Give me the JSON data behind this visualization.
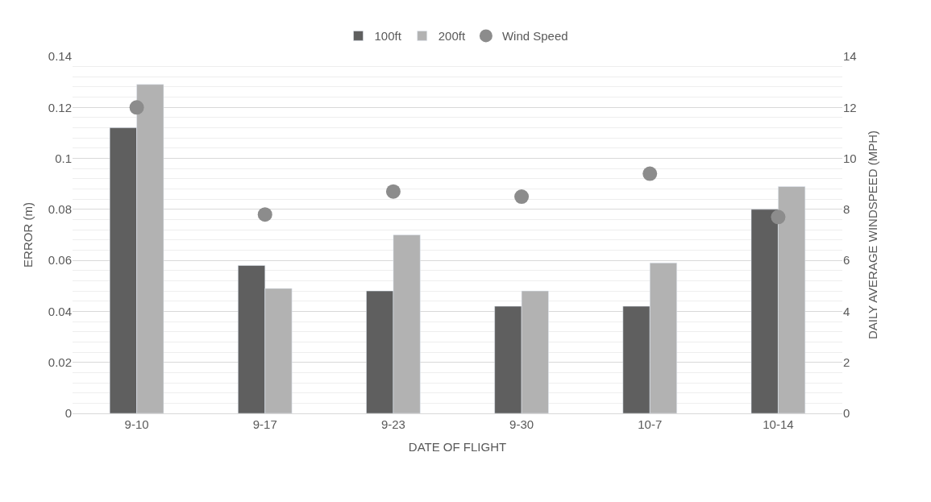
{
  "chart_data": {
    "type": "bar",
    "xlabel": "DATE OF FLIGHT",
    "ylabel": "ERROR (m)",
    "y2label": "DAILY AVERAGE WINDSPEED (MPH)",
    "categories": [
      "9-10",
      "9-17",
      "9-23",
      "9-30",
      "10-7",
      "10-14"
    ],
    "series": [
      {
        "name": "100ft",
        "color": "#5f5f5f",
        "values": [
          0.112,
          0.058,
          0.048,
          0.042,
          0.042,
          0.08
        ]
      },
      {
        "name": "200ft",
        "color": "#b2b2b2",
        "values": [
          0.129,
          0.049,
          0.07,
          0.048,
          0.059,
          0.089
        ]
      },
      {
        "name": "Wind Speed",
        "type": "scatter",
        "axis": "y2",
        "color": "#8c8c8c",
        "marker": "circle",
        "values": [
          12.0,
          7.8,
          8.7,
          8.5,
          9.4,
          7.7
        ]
      }
    ],
    "ylim": [
      0,
      0.14
    ],
    "yticks": [
      0,
      0.02,
      0.04,
      0.06,
      0.08,
      0.1,
      0.12,
      0.14
    ],
    "y2lim": [
      0,
      14
    ],
    "y2ticks": [
      0,
      2,
      4,
      6,
      8,
      10,
      12,
      14
    ],
    "grid": "y",
    "legend": "top"
  }
}
